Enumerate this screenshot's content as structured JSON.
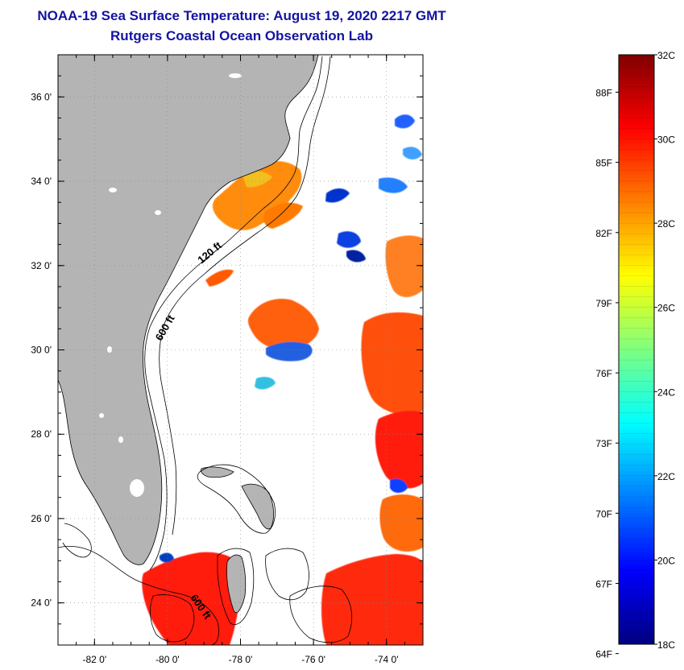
{
  "title": "NOAA-19 Sea Surface Temperature:  August 19, 2020 2217 GMT",
  "subtitle": "Rutgers Coastal Ocean Observation Lab",
  "map": {
    "lon_range": [
      -83,
      -73
    ],
    "lat_range": [
      23,
      37
    ],
    "lat_labels": [
      {
        "lat": 36,
        "text": "36 0'"
      },
      {
        "lat": 34,
        "text": "34 0'"
      },
      {
        "lat": 32,
        "text": "32 0'"
      },
      {
        "lat": 30,
        "text": "30 0'"
      },
      {
        "lat": 28,
        "text": "28 0'"
      },
      {
        "lat": 26,
        "text": "26 0'"
      },
      {
        "lat": 24,
        "text": "24 0'"
      }
    ],
    "lon_labels": [
      {
        "lon": -82,
        "text": "-82 0'"
      },
      {
        "lon": -80,
        "text": "-80 0'"
      },
      {
        "lon": -78,
        "text": "-78 0'"
      },
      {
        "lon": -76,
        "text": "-76 0'"
      },
      {
        "lon": -74,
        "text": "-74 0'"
      }
    ],
    "contour_labels": [
      "120 ft",
      "600 ft",
      "600 ft"
    ],
    "land_color": "#b4b4b4"
  },
  "colorbar": {
    "range_c": [
      18,
      32
    ],
    "celsius_labels": [
      {
        "value": 32,
        "text": "32C"
      },
      {
        "value": 30,
        "text": "30C"
      },
      {
        "value": 28,
        "text": "28C"
      },
      {
        "value": 26,
        "text": "26C"
      },
      {
        "value": 24,
        "text": "24C"
      },
      {
        "value": 22,
        "text": "22C"
      },
      {
        "value": 20,
        "text": "20C"
      },
      {
        "value": 18,
        "text": "18C"
      }
    ],
    "fahrenheit_labels": [
      {
        "value": 88,
        "text": "88F"
      },
      {
        "value": 85,
        "text": "85F"
      },
      {
        "value": 82,
        "text": "82F"
      },
      {
        "value": 79,
        "text": "79F"
      },
      {
        "value": 76,
        "text": "76F"
      },
      {
        "value": 73,
        "text": "73F"
      },
      {
        "value": 70,
        "text": "70F"
      },
      {
        "value": 67,
        "text": "67F"
      },
      {
        "value": 64,
        "text": "64F"
      }
    ],
    "colors": [
      "#00007f",
      "#0000ff",
      "#007fff",
      "#00ffff",
      "#7fff7f",
      "#ffff00",
      "#ff7f00",
      "#ff0000",
      "#7f0000"
    ]
  }
}
